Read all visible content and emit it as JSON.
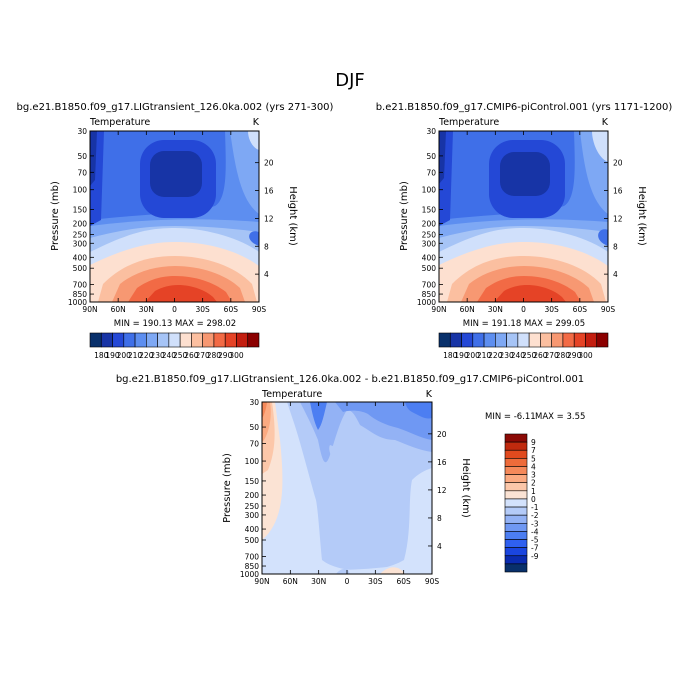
{
  "page": {
    "season": "DJF"
  },
  "palettes": {
    "abs_colors": [
      "#08306b",
      "#1734a6",
      "#2448d6",
      "#3f6fe8",
      "#5d8ef0",
      "#7ea8f4",
      "#a6c4f6",
      "#d0e0fb",
      "#fde0d0",
      "#fbbfa0",
      "#f79872",
      "#f26a45",
      "#e54326",
      "#c41e10",
      "#8b0000"
    ],
    "abs_labels": [
      "180",
      "190",
      "200",
      "210",
      "220",
      "230",
      "240",
      "250",
      "260",
      "270",
      "280",
      "290",
      "300"
    ],
    "diff_colors": [
      "#08306b",
      "#0a2bb0",
      "#1a45e0",
      "#2f60f0",
      "#4c7ef2",
      "#6f98f3",
      "#93b2f5",
      "#b4cbf8",
      "#d3e2fc",
      "#fbe3d4",
      "#fcc7a9",
      "#fbaa81",
      "#f5895a",
      "#ee6b3a",
      "#e14a1e",
      "#c02a0e",
      "#8b0a05"
    ],
    "diff_labels": [
      "-9",
      "-7",
      "-5",
      "-4",
      "-3",
      "-2",
      "-1",
      "0",
      "1",
      "2",
      "3",
      "4",
      "5",
      "7",
      "9"
    ]
  },
  "axes": {
    "pressure_label": "Pressure (mb)",
    "height_label": "Height (km)",
    "pressure_ticks": [
      "30",
      "50",
      "70",
      "100",
      "150",
      "200",
      "250",
      "300",
      "400",
      "500",
      "700",
      "850",
      "1000"
    ],
    "height_ticks": [
      "4",
      "8",
      "12",
      "16",
      "20"
    ],
    "lat_ticks": [
      "90N",
      "60N",
      "30N",
      "0",
      "30S",
      "60S",
      "90S"
    ]
  },
  "chart_data": [
    {
      "type": "heatmap",
      "title": "bg.e21.B1850.f09_g17.LIGtransient_126.0ka.002 (yrs 271-300)",
      "left_label": "Temperature",
      "right_label": "K",
      "stats": "MIN = 190.13   MAX = 298.02",
      "min": 190.13,
      "max": 298.02,
      "x": [
        "90N",
        "60N",
        "30N",
        "0",
        "30S",
        "60S",
        "90S"
      ],
      "y": [
        "1000",
        "850",
        "700",
        "500",
        "400",
        "300",
        "250",
        "200",
        "150",
        "100",
        "70",
        "50",
        "30"
      ]
    },
    {
      "type": "heatmap",
      "title": "b.e21.B1850.f09_g17.CMIP6-piControl.001 (yrs 1171-1200)",
      "left_label": "Temperature",
      "right_label": "K",
      "stats": "MIN = 191.18   MAX = 299.05",
      "min": 191.18,
      "max": 299.05,
      "x": [
        "90N",
        "60N",
        "30N",
        "0",
        "30S",
        "60S",
        "90S"
      ],
      "y": [
        "1000",
        "850",
        "700",
        "500",
        "400",
        "300",
        "250",
        "200",
        "150",
        "100",
        "70",
        "50",
        "30"
      ]
    },
    {
      "type": "heatmap",
      "title": "bg.e21.B1850.f09_g17.LIGtransient_126.0ka.002 - b.e21.B1850.f09_g17.CMIP6-piControl.001",
      "left_label": "Temperature",
      "right_label": "K",
      "stats_min": "MIN =  -6.11",
      "stats_max": "MAX =    3.55",
      "min": -6.11,
      "max": 3.55,
      "x": [
        "90N",
        "60N",
        "30N",
        "0",
        "30S",
        "60S",
        "90S"
      ],
      "y": [
        "1000",
        "850",
        "700",
        "500",
        "400",
        "300",
        "250",
        "200",
        "150",
        "100",
        "70",
        "50",
        "30"
      ]
    }
  ]
}
